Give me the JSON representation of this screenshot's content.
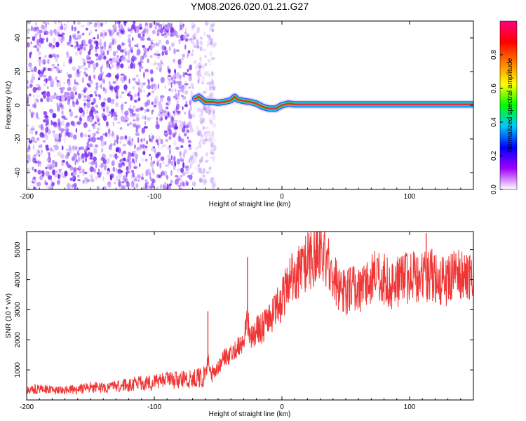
{
  "figure": {
    "title": "YM08.2026.020.01.21.G27"
  },
  "colors": {
    "snr_line": "#f03535",
    "ridge_core": "#e8302f",
    "scatter": "#7a2cf0",
    "frame": "#000000",
    "background": "#ffffff"
  },
  "chart_data": [
    {
      "type": "heatmap",
      "name": "spectrogram",
      "title": "YM08.2026.020.01.21.G27",
      "xlabel": "Height of straight line (km)",
      "ylabel": "Frequency (Hz)",
      "xlim": [
        -200,
        150
      ],
      "ylim": [
        -50,
        50
      ],
      "xticks": [
        -200,
        -100,
        0,
        100
      ],
      "xtick_labels": [
        "-200",
        "-100",
        "0",
        "100"
      ],
      "yticks": [
        -40,
        -20,
        0,
        20,
        40
      ],
      "ytick_labels": [
        "-40",
        "-20",
        "0",
        "20",
        "40"
      ],
      "noise_region": {
        "x_from": -200,
        "x_to": -60,
        "description_level": "noise"
      },
      "ridge": {
        "x": [
          -68,
          -65,
          -60,
          -55,
          -50,
          -45,
          -40,
          -37,
          -35,
          -30,
          -25,
          -20,
          -15,
          -10,
          -5,
          0,
          5,
          10,
          20,
          40,
          60,
          80,
          100,
          120,
          150
        ],
        "y": [
          4,
          5,
          2,
          2,
          1.5,
          2,
          3,
          5,
          3.5,
          2.5,
          2,
          1,
          -1,
          -2,
          -2,
          0,
          1,
          0.5,
          0.5,
          0.5,
          0.5,
          0.5,
          0.5,
          0.5,
          0.5
        ]
      },
      "colorbar": {
        "label": "Normalized spectral amplitude",
        "range": [
          0,
          1
        ],
        "ticks": [
          0.0,
          0.2,
          0.4,
          0.6,
          0.8
        ],
        "tick_labels": [
          "0.0",
          "0.2",
          "0.4",
          "0.6",
          "0.8"
        ],
        "colormap": [
          "#ffffff",
          "#a000ff",
          "#0000ff",
          "#00c8ff",
          "#00ff00",
          "#ffff00",
          "#ff8000",
          "#ff0000",
          "#ff0080"
        ]
      }
    },
    {
      "type": "line",
      "name": "snr",
      "xlabel": "Height of straight line (km)",
      "ylabel": "SNR (10 * v/v)",
      "xlim": [
        -200,
        150
      ],
      "ylim": [
        0,
        5600
      ],
      "xticks": [
        -200,
        -100,
        0,
        100
      ],
      "xtick_labels": [
        "-200",
        "-100",
        "0",
        "100"
      ],
      "yticks": [
        1000,
        2000,
        3000,
        4000,
        5000
      ],
      "ytick_labels": [
        "1000",
        "2000",
        "3000",
        "4000",
        "5000"
      ],
      "series": [
        {
          "name": "SNR",
          "x": [
            -200,
            -190,
            -180,
            -170,
            -160,
            -150,
            -140,
            -130,
            -120,
            -110,
            -100,
            -90,
            -80,
            -70,
            -65,
            -60,
            -58,
            -55,
            -50,
            -45,
            -40,
            -35,
            -30,
            -27,
            -25,
            -20,
            -15,
            -10,
            -5,
            0,
            5,
            10,
            15,
            20,
            25,
            30,
            35,
            40,
            45,
            50,
            55,
            60,
            65,
            70,
            75,
            80,
            85,
            90,
            95,
            100,
            105,
            110,
            115,
            120,
            125,
            130,
            135,
            140,
            145,
            150
          ],
          "values": [
            350,
            380,
            330,
            320,
            360,
            420,
            430,
            460,
            500,
            550,
            600,
            650,
            650,
            700,
            750,
            780,
            1300,
            800,
            1100,
            1400,
            1500,
            1800,
            2000,
            2600,
            2000,
            2300,
            2400,
            2600,
            3000,
            3300,
            3900,
            4100,
            4400,
            4600,
            4800,
            5000,
            4800,
            4200,
            3700,
            3600,
            3700,
            3700,
            3800,
            4000,
            4200,
            4000,
            3800,
            3900,
            4000,
            4100,
            4100,
            4000,
            4200,
            4100,
            3900,
            4000,
            4100,
            4200,
            4000,
            4100
          ]
        }
      ],
      "spikes": [
        {
          "x": -58,
          "value": 2950
        },
        {
          "x": -27,
          "value": 4750
        },
        {
          "x": 113,
          "value": 5550
        }
      ]
    }
  ]
}
